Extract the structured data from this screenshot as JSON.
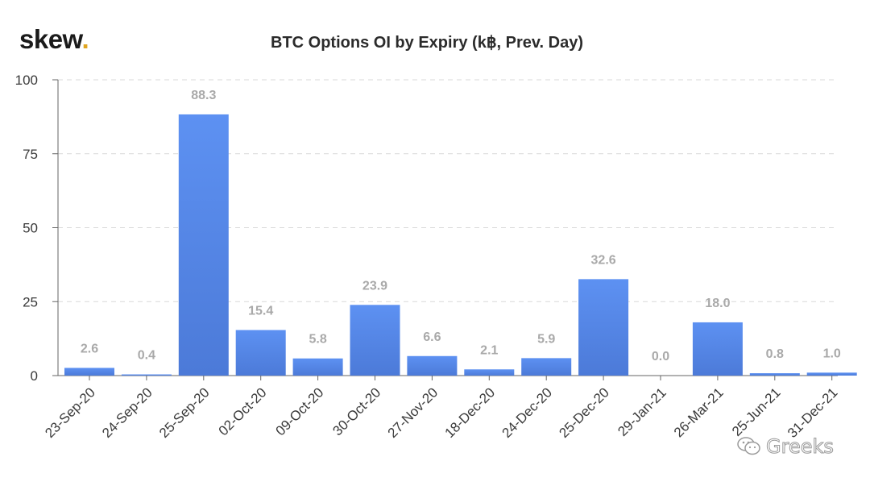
{
  "brand": {
    "name": "skew",
    "dot": "."
  },
  "watermark": {
    "text": "Greeks",
    "icon": "wechat-icon"
  },
  "colors": {
    "bar": "#5b8def",
    "bar_dark": "#4a78da",
    "grid": "#d9d9d9",
    "axis": "#666666",
    "tick_text": "#3a3a3a",
    "data_label": "#a9a9a9",
    "brand_dot": "#e0a520"
  },
  "chart_data": {
    "type": "bar",
    "title": "BTC Options OI by Expiry (k฿, Prev. Day)",
    "xlabel": "",
    "ylabel": "",
    "ylim": [
      0,
      100
    ],
    "yticks": [
      0,
      25,
      50,
      75,
      100
    ],
    "grid": true,
    "categories": [
      "23-Sep-20",
      "24-Sep-20",
      "25-Sep-20",
      "02-Oct-20",
      "09-Oct-20",
      "30-Oct-20",
      "27-Nov-20",
      "18-Dec-20",
      "24-Dec-20",
      "25-Dec-20",
      "29-Jan-21",
      "26-Mar-21",
      "25-Jun-21",
      "31-Dec-21"
    ],
    "values": [
      2.6,
      0.4,
      88.3,
      15.4,
      5.8,
      23.9,
      6.6,
      2.1,
      5.9,
      32.6,
      0.0,
      18.0,
      0.8,
      1.0
    ],
    "data_labels": [
      "2.6",
      "0.4",
      "88.3",
      "15.4",
      "5.8",
      "23.9",
      "6.6",
      "2.1",
      "5.9",
      "32.6",
      "0.0",
      "18.0",
      "0.8",
      "1.0"
    ]
  }
}
